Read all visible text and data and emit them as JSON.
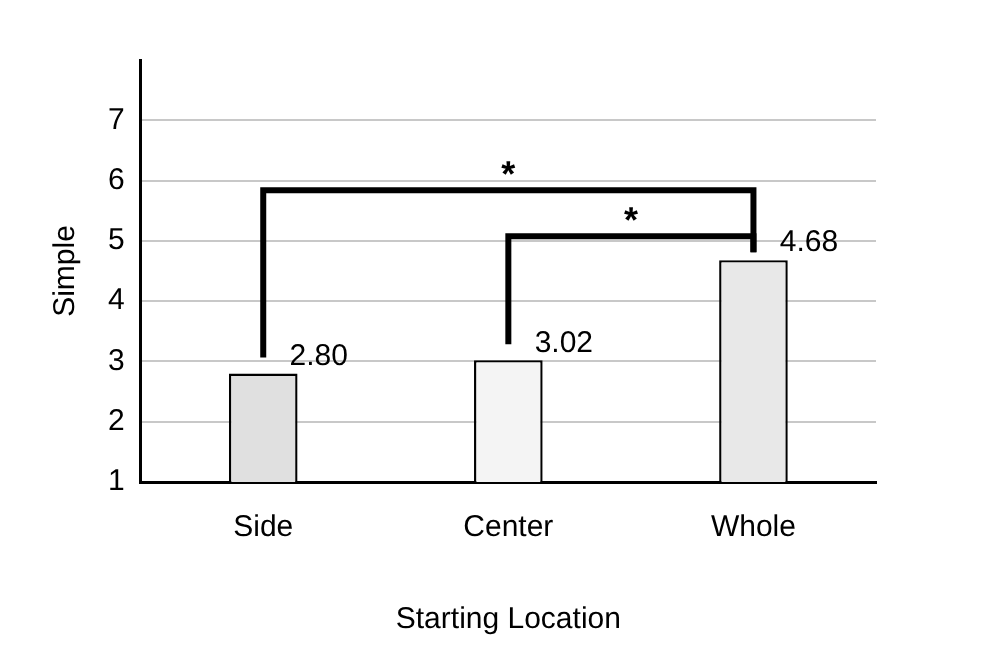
{
  "chart_data": {
    "type": "bar",
    "xlabel": "Starting Location",
    "ylabel": "Simple",
    "categories": [
      "Side",
      "Center",
      "Whole"
    ],
    "values": [
      2.8,
      3.02,
      4.68
    ],
    "colors": [
      "#e0e0e0",
      "#f4f4f4",
      "#e8e8e8"
    ],
    "value_labels": [
      "2.80",
      "3.02",
      "4.68"
    ],
    "ylim": [
      1,
      8
    ],
    "yticks": [
      1,
      2,
      3,
      4,
      5,
      6,
      7
    ],
    "grid": "y",
    "legend": false,
    "annotations": [
      "*",
      "*"
    ]
  }
}
